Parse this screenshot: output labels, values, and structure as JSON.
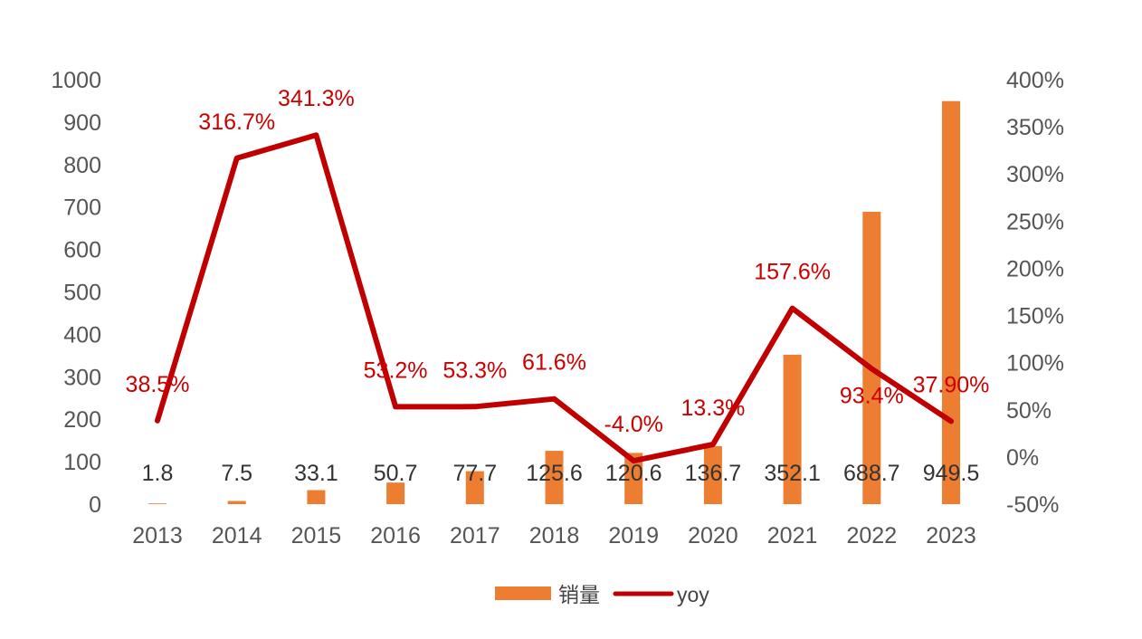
{
  "chart_data": {
    "type": "bar",
    "categories": [
      "2013",
      "2014",
      "2015",
      "2016",
      "2017",
      "2018",
      "2019",
      "2020",
      "2021",
      "2022",
      "2023"
    ],
    "series": [
      {
        "name": "销量",
        "type": "bar",
        "axis": "left",
        "color": "#ed7d31",
        "values": [
          1.8,
          7.5,
          33.1,
          50.7,
          77.7,
          125.6,
          120.6,
          136.7,
          352.1,
          688.7,
          949.5
        ],
        "labels": [
          "1.8",
          "7.5",
          "33.1",
          "50.7",
          "77.7",
          "125.6",
          "120.6",
          "136.7",
          "352.1",
          "688.7",
          "949.5"
        ]
      },
      {
        "name": "yoy",
        "type": "line",
        "axis": "right",
        "color": "#c00000",
        "values": [
          38.5,
          316.7,
          341.3,
          53.2,
          53.3,
          61.6,
          -4.0,
          13.3,
          157.6,
          93.4,
          37.9
        ],
        "labels": [
          "38.5%",
          "316.7%",
          "341.3%",
          "53.2%",
          "53.3%",
          "61.6%",
          "-4.0%",
          "13.3%",
          "157.6%",
          "93.4%",
          "37.90%"
        ]
      }
    ],
    "y_left": {
      "min": 0,
      "max": 1000,
      "ticks": [
        "0",
        "100",
        "200",
        "300",
        "400",
        "500",
        "600",
        "700",
        "800",
        "900",
        "1000"
      ]
    },
    "y_right": {
      "min": -50,
      "max": 400,
      "ticks": [
        "-50%",
        "0%",
        "50%",
        "100%",
        "150%",
        "200%",
        "250%",
        "300%",
        "350%",
        "400%"
      ]
    },
    "title": "",
    "grid": false,
    "legend": "bottom"
  }
}
